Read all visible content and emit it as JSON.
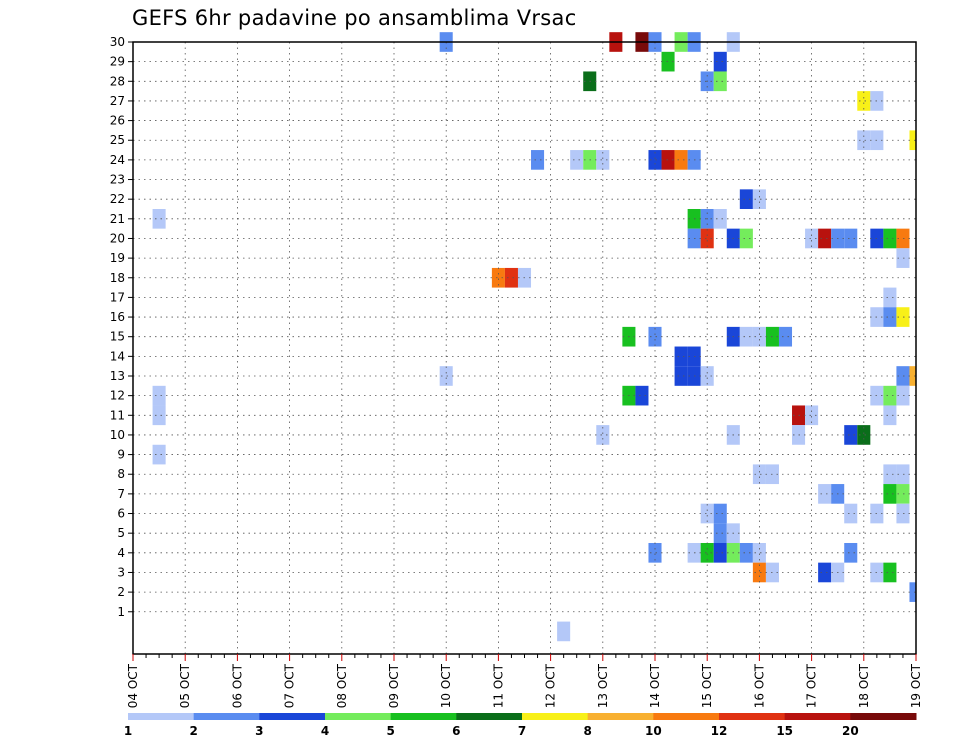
{
  "chart_data": {
    "type": "heatmap",
    "title": "GEFS 6hr padavine po ansamblima Vrsac",
    "xlabel": "",
    "ylabel": "",
    "x_tick_labels": [
      "04 OCT",
      "05 OCT",
      "06 OCT",
      "07 OCT",
      "08 OCT",
      "09 OCT",
      "10 OCT",
      "11 OCT",
      "12 OCT",
      "13 OCT",
      "14 OCT",
      "15 OCT",
      "16 OCT",
      "17 OCT",
      "18 OCT",
      "19 OCT"
    ],
    "y_tick_labels": [
      "1",
      "2",
      "3",
      "4",
      "5",
      "6",
      "7",
      "8",
      "9",
      "10",
      "11",
      "12",
      "13",
      "14",
      "15",
      "16",
      "17",
      "18",
      "19",
      "20",
      "21",
      "22",
      "23",
      "24",
      "25",
      "26",
      "27",
      "28",
      "29",
      "30"
    ],
    "x_range_steps": [
      0,
      60
    ],
    "steps_per_day": 4,
    "y_range": [
      0,
      30
    ],
    "grid": true,
    "legend_placement": "bottom",
    "legend": {
      "labels": [
        "1",
        "2",
        "3",
        "4",
        "5",
        "6",
        "7",
        "8",
        "10",
        "12",
        "15",
        "20"
      ],
      "colors": [
        "#b4c8f8",
        "#5a8cf0",
        "#1a46d8",
        "#74ec5c",
        "#18c020",
        "#0a6e1a",
        "#f8f018",
        "#f8b030",
        "#f87a10",
        "#e03212",
        "#b8120e",
        "#780a0a"
      ]
    },
    "cells": [
      {
        "member": 30,
        "step": 24,
        "value": 2
      },
      {
        "member": 30,
        "step": 37,
        "value": 15
      },
      {
        "member": 30,
        "step": 39,
        "value": 20
      },
      {
        "member": 30,
        "step": 40,
        "value": 2
      },
      {
        "member": 30,
        "step": 42,
        "value": 4
      },
      {
        "member": 30,
        "step": 43,
        "value": 2
      },
      {
        "member": 30,
        "step": 46,
        "value": 1
      },
      {
        "member": 29,
        "step": 41,
        "value": 5
      },
      {
        "member": 29,
        "step": 45,
        "value": 3
      },
      {
        "member": 28,
        "step": 35,
        "value": 6
      },
      {
        "member": 28,
        "step": 44,
        "value": 2
      },
      {
        "member": 28,
        "step": 45,
        "value": 4
      },
      {
        "member": 27,
        "step": 56,
        "value": 7
      },
      {
        "member": 27,
        "step": 57,
        "value": 1
      },
      {
        "member": 25,
        "step": 56,
        "value": 1
      },
      {
        "member": 25,
        "step": 57,
        "value": 1
      },
      {
        "member": 25,
        "step": 60,
        "value": 7
      },
      {
        "member": 24,
        "step": 31,
        "value": 2
      },
      {
        "member": 24,
        "step": 34,
        "value": 1
      },
      {
        "member": 24,
        "step": 35,
        "value": 4
      },
      {
        "member": 24,
        "step": 36,
        "value": 1
      },
      {
        "member": 24,
        "step": 40,
        "value": 3
      },
      {
        "member": 24,
        "step": 41,
        "value": 15
      },
      {
        "member": 24,
        "step": 42,
        "value": 10
      },
      {
        "member": 24,
        "step": 43,
        "value": 2
      },
      {
        "member": 22,
        "step": 47,
        "value": 3
      },
      {
        "member": 22,
        "step": 48,
        "value": 1
      },
      {
        "member": 21,
        "step": 2,
        "value": 1
      },
      {
        "member": 21,
        "step": 43,
        "value": 5
      },
      {
        "member": 21,
        "step": 44,
        "value": 2
      },
      {
        "member": 21,
        "step": 45,
        "value": 1
      },
      {
        "member": 20,
        "step": 43,
        "value": 2
      },
      {
        "member": 20,
        "step": 44,
        "value": 12
      },
      {
        "member": 20,
        "step": 46,
        "value": 3
      },
      {
        "member": 20,
        "step": 47,
        "value": 4
      },
      {
        "member": 20,
        "step": 52,
        "value": 1
      },
      {
        "member": 20,
        "step": 53,
        "value": 15
      },
      {
        "member": 20,
        "step": 54,
        "value": 2
      },
      {
        "member": 20,
        "step": 55,
        "value": 2
      },
      {
        "member": 20,
        "step": 57,
        "value": 3
      },
      {
        "member": 20,
        "step": 58,
        "value": 5
      },
      {
        "member": 20,
        "step": 59,
        "value": 10
      },
      {
        "member": 19,
        "step": 59,
        "value": 1
      },
      {
        "member": 18,
        "step": 28,
        "value": 10
      },
      {
        "member": 18,
        "step": 29,
        "value": 12
      },
      {
        "member": 18,
        "step": 30,
        "value": 1
      },
      {
        "member": 17,
        "step": 58,
        "value": 1
      },
      {
        "member": 16,
        "step": 57,
        "value": 1
      },
      {
        "member": 16,
        "step": 58,
        "value": 2
      },
      {
        "member": 16,
        "step": 59,
        "value": 7
      },
      {
        "member": 15,
        "step": 38,
        "value": 5
      },
      {
        "member": 15,
        "step": 40,
        "value": 2
      },
      {
        "member": 15,
        "step": 46,
        "value": 3
      },
      {
        "member": 15,
        "step": 47,
        "value": 1
      },
      {
        "member": 15,
        "step": 48,
        "value": 1
      },
      {
        "member": 15,
        "step": 49,
        "value": 5
      },
      {
        "member": 15,
        "step": 50,
        "value": 2
      },
      {
        "member": 14,
        "step": 42,
        "value": 3
      },
      {
        "member": 14,
        "step": 43,
        "value": 3
      },
      {
        "member": 13,
        "step": 24,
        "value": 1
      },
      {
        "member": 13,
        "step": 42,
        "value": 3
      },
      {
        "member": 13,
        "step": 43,
        "value": 3
      },
      {
        "member": 13,
        "step": 44,
        "value": 1
      },
      {
        "member": 13,
        "step": 59,
        "value": 2
      },
      {
        "member": 13,
        "step": 60,
        "value": 8
      },
      {
        "member": 12,
        "step": 2,
        "value": 1
      },
      {
        "member": 12,
        "step": 38,
        "value": 5
      },
      {
        "member": 12,
        "step": 39,
        "value": 3
      },
      {
        "member": 12,
        "step": 57,
        "value": 1
      },
      {
        "member": 12,
        "step": 58,
        "value": 4
      },
      {
        "member": 12,
        "step": 59,
        "value": 1
      },
      {
        "member": 11,
        "step": 2,
        "value": 1
      },
      {
        "member": 11,
        "step": 51,
        "value": 15
      },
      {
        "member": 11,
        "step": 52,
        "value": 1
      },
      {
        "member": 11,
        "step": 58,
        "value": 1
      },
      {
        "member": 10,
        "step": 36,
        "value": 1
      },
      {
        "member": 10,
        "step": 46,
        "value": 1
      },
      {
        "member": 10,
        "step": 51,
        "value": 1
      },
      {
        "member": 10,
        "step": 55,
        "value": 3
      },
      {
        "member": 10,
        "step": 56,
        "value": 6
      },
      {
        "member": 9,
        "step": 2,
        "value": 1
      },
      {
        "member": 8,
        "step": 48,
        "value": 1
      },
      {
        "member": 8,
        "step": 49,
        "value": 1
      },
      {
        "member": 8,
        "step": 58,
        "value": 1
      },
      {
        "member": 8,
        "step": 59,
        "value": 1
      },
      {
        "member": 7,
        "step": 53,
        "value": 1
      },
      {
        "member": 7,
        "step": 54,
        "value": 2
      },
      {
        "member": 7,
        "step": 58,
        "value": 5
      },
      {
        "member": 7,
        "step": 59,
        "value": 4
      },
      {
        "member": 6,
        "step": 44,
        "value": 1
      },
      {
        "member": 6,
        "step": 45,
        "value": 2
      },
      {
        "member": 6,
        "step": 55,
        "value": 1
      },
      {
        "member": 6,
        "step": 57,
        "value": 1
      },
      {
        "member": 6,
        "step": 59,
        "value": 1
      },
      {
        "member": 5,
        "step": 45,
        "value": 2
      },
      {
        "member": 5,
        "step": 46,
        "value": 1
      },
      {
        "member": 4,
        "step": 40,
        "value": 2
      },
      {
        "member": 4,
        "step": 43,
        "value": 1
      },
      {
        "member": 4,
        "step": 44,
        "value": 5
      },
      {
        "member": 4,
        "step": 45,
        "value": 3
      },
      {
        "member": 4,
        "step": 46,
        "value": 4
      },
      {
        "member": 4,
        "step": 47,
        "value": 2
      },
      {
        "member": 4,
        "step": 48,
        "value": 1
      },
      {
        "member": 4,
        "step": 55,
        "value": 2
      },
      {
        "member": 3,
        "step": 48,
        "value": 10
      },
      {
        "member": 3,
        "step": 49,
        "value": 1
      },
      {
        "member": 3,
        "step": 53,
        "value": 3
      },
      {
        "member": 3,
        "step": 54,
        "value": 1
      },
      {
        "member": 3,
        "step": 57,
        "value": 1
      },
      {
        "member": 3,
        "step": 58,
        "value": 5
      },
      {
        "member": 2,
        "step": 60,
        "value": 2
      },
      {
        "member": 0,
        "step": 33,
        "value": 1
      }
    ]
  }
}
